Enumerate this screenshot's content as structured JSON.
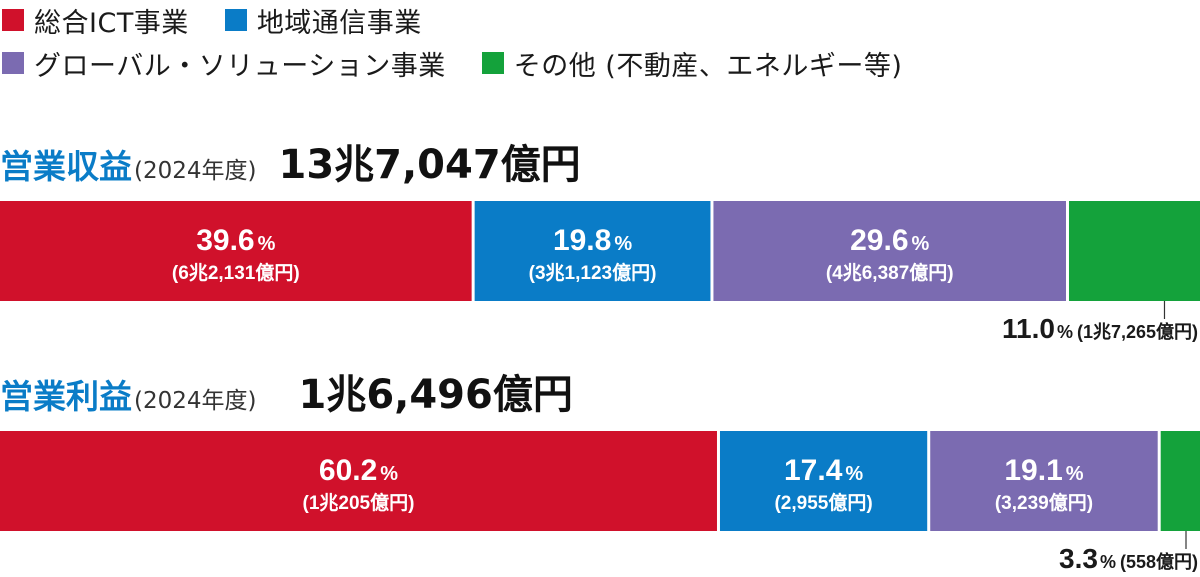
{
  "legend": [
    {
      "label": "総合ICT事業",
      "color": "#d0112b"
    },
    {
      "label": "地域通信事業",
      "color": "#0a7cc7"
    },
    {
      "label": "グローバル・ソリューション事業",
      "color": "#7b6bb1"
    },
    {
      "label": "その他 (不動産、エネルギー等)",
      "color": "#14a23b"
    }
  ],
  "chart_data": [
    {
      "type": "bar",
      "title": "営業収益",
      "subtitle": "(2024年度)",
      "total": "13兆7,047億円",
      "stacked": true,
      "orientation": "horizontal",
      "segments": [
        {
          "percent": 39.6,
          "label": "39.6",
          "amount": "(6兆2,131億円)",
          "color": "#d0112b"
        },
        {
          "percent": 19.8,
          "label": "19.8",
          "amount": "(3兆1,123億円)",
          "color": "#0a7cc7"
        },
        {
          "percent": 29.6,
          "label": "29.6",
          "amount": "(4兆6,387億円)",
          "color": "#7b6bb1"
        },
        {
          "percent": 11.0,
          "label": "11.0",
          "amount": "(1兆7,265億円)",
          "color": "#14a23b"
        }
      ],
      "unit": "%"
    },
    {
      "type": "bar",
      "title": "営業利益",
      "subtitle": "(2024年度)",
      "total": "1兆6,496億円",
      "stacked": true,
      "orientation": "horizontal",
      "segments": [
        {
          "percent": 60.2,
          "label": "60.2",
          "amount": "(1兆205億円)",
          "color": "#d0112b"
        },
        {
          "percent": 17.4,
          "label": "17.4",
          "amount": "(2,955億円)",
          "color": "#0a7cc7"
        },
        {
          "percent": 19.1,
          "label": "19.1",
          "amount": "(3,239億円)",
          "color": "#7b6bb1"
        },
        {
          "percent": 3.3,
          "label": "3.3",
          "amount": "(558億円)",
          "color": "#14a23b"
        }
      ],
      "unit": "%"
    }
  ]
}
